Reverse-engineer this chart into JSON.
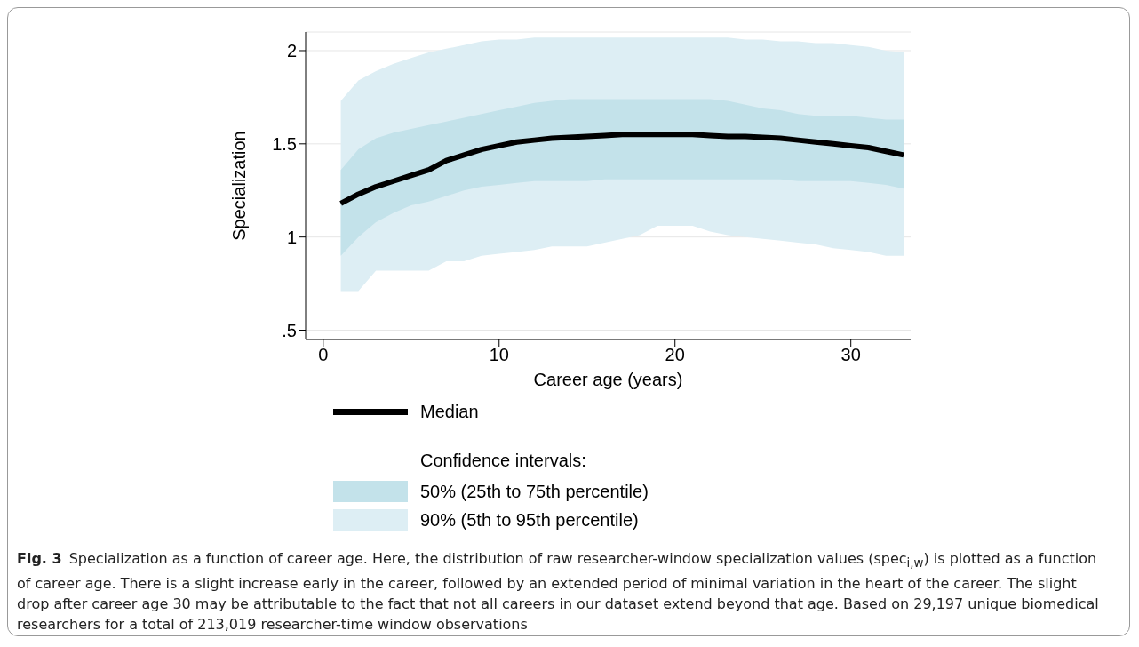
{
  "chart_data": {
    "type": "line",
    "xlabel": "Career age (years)",
    "ylabel": "Specialization",
    "x": [
      1,
      2,
      3,
      4,
      5,
      6,
      7,
      8,
      9,
      10,
      11,
      12,
      13,
      14,
      15,
      16,
      17,
      18,
      19,
      20,
      21,
      22,
      23,
      24,
      25,
      26,
      27,
      28,
      29,
      30,
      31,
      32,
      33
    ],
    "series": [
      {
        "name": "Median",
        "color": "#000000",
        "values": [
          1.18,
          1.23,
          1.27,
          1.3,
          1.33,
          1.36,
          1.41,
          1.44,
          1.47,
          1.49,
          1.51,
          1.52,
          1.53,
          1.535,
          1.54,
          1.545,
          1.55,
          1.55,
          1.55,
          1.55,
          1.55,
          1.545,
          1.54,
          1.54,
          1.535,
          1.53,
          1.52,
          1.51,
          1.5,
          1.49,
          1.48,
          1.46,
          1.44
        ]
      },
      {
        "name": "50% (25th to 75th percentile)",
        "type": "area",
        "color": "#c3e2ea",
        "values": [
          null,
          null,
          null,
          null,
          null,
          null,
          null,
          null,
          null,
          null,
          null,
          null,
          null,
          null,
          null,
          null,
          null,
          null,
          null,
          null,
          null,
          null,
          null,
          null,
          null,
          null,
          null,
          null,
          null,
          null,
          null,
          null,
          null
        ],
        "lower": [
          0.9,
          1.0,
          1.08,
          1.13,
          1.17,
          1.19,
          1.22,
          1.25,
          1.27,
          1.28,
          1.29,
          1.3,
          1.3,
          1.3,
          1.3,
          1.31,
          1.31,
          1.31,
          1.31,
          1.31,
          1.31,
          1.31,
          1.31,
          1.31,
          1.31,
          1.31,
          1.3,
          1.3,
          1.3,
          1.3,
          1.29,
          1.28,
          1.26
        ],
        "upper": [
          1.36,
          1.47,
          1.53,
          1.56,
          1.58,
          1.6,
          1.62,
          1.64,
          1.66,
          1.68,
          1.7,
          1.72,
          1.73,
          1.74,
          1.74,
          1.74,
          1.74,
          1.74,
          1.74,
          1.74,
          1.74,
          1.74,
          1.73,
          1.71,
          1.69,
          1.68,
          1.66,
          1.65,
          1.65,
          1.65,
          1.64,
          1.63,
          1.63
        ]
      },
      {
        "name": "90% (5th to 95th percentile)",
        "type": "area",
        "color": "#ddeef4",
        "values": [
          null,
          null,
          null,
          null,
          null,
          null,
          null,
          null,
          null,
          null,
          null,
          null,
          null,
          null,
          null,
          null,
          null,
          null,
          null,
          null,
          null,
          null,
          null,
          null,
          null,
          null,
          null,
          null,
          null,
          null,
          null,
          null,
          null
        ],
        "lower": [
          0.71,
          0.71,
          0.82,
          0.82,
          0.82,
          0.82,
          0.87,
          0.87,
          0.9,
          0.91,
          0.92,
          0.93,
          0.95,
          0.95,
          0.95,
          0.97,
          0.99,
          1.01,
          1.06,
          1.06,
          1.06,
          1.03,
          1.01,
          1.0,
          0.99,
          0.98,
          0.97,
          0.96,
          0.94,
          0.93,
          0.92,
          0.9,
          0.9
        ],
        "upper": [
          1.73,
          1.84,
          1.89,
          1.93,
          1.96,
          1.99,
          2.01,
          2.03,
          2.05,
          2.06,
          2.06,
          2.07,
          2.07,
          2.07,
          2.07,
          2.07,
          2.07,
          2.07,
          2.07,
          2.07,
          2.07,
          2.07,
          2.07,
          2.06,
          2.06,
          2.05,
          2.05,
          2.04,
          2.04,
          2.03,
          2.02,
          2.0,
          1.99
        ]
      }
    ],
    "xlim": [
      -1,
      33.4
    ],
    "xticks": [
      0,
      10,
      20,
      30
    ],
    "ylim": [
      0.45,
      2.1
    ],
    "yticks": [
      {
        "value": 0.5,
        "label": ".5"
      },
      1,
      1.5,
      2
    ],
    "grid": "y",
    "legend": "bottom",
    "legend_title": "Confidence intervals:",
    "annotations": [
      "Fig. 3",
      "Specialization as a function of career age. Here, the distribution of raw researcher-window specialization values (spec$_{i,w}$) is plotted as a function of career age. There is a slight increase early in the career, followed by an extended period of minimal variation in the heart of the career. The slight drop after career age 30 may be attributable to the fact that not all careers in our dataset extend beyond that age. Based on 29,197 unique biomedical researchers for a total of 213,019 researcher-time window observations"
    ]
  }
}
